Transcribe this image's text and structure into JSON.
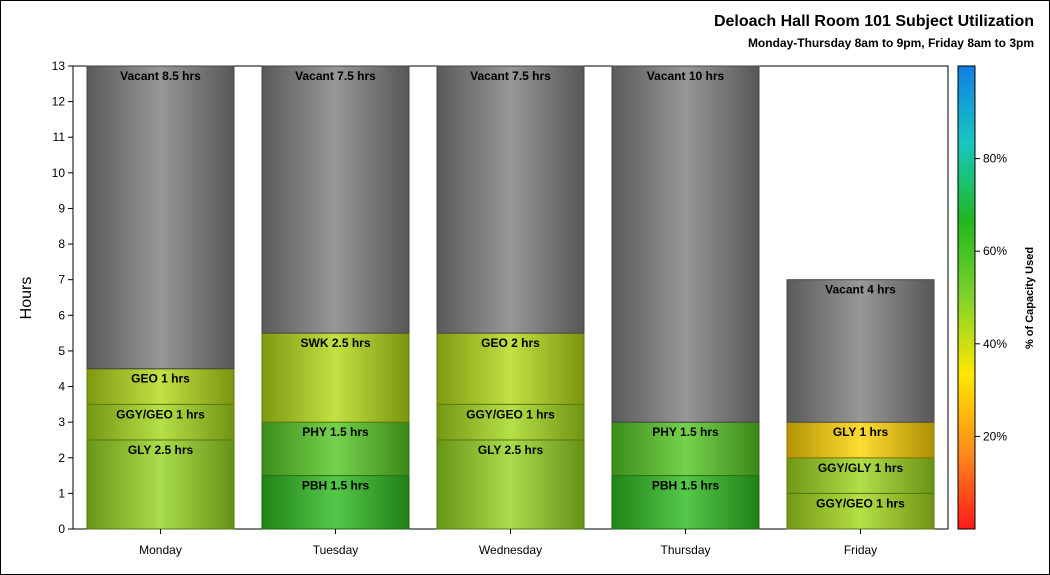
{
  "chart_data": {
    "type": "bar",
    "stacked": true,
    "title": "Deloach Hall Room 101 Subject Utilization",
    "subtitle": "Monday-Thursday 8am to 9pm, Friday 8am to 3pm",
    "ylabel": "Hours",
    "xlabel": "",
    "ylim": [
      0,
      13
    ],
    "yticks": [
      0,
      1,
      2,
      3,
      4,
      5,
      6,
      7,
      8,
      9,
      10,
      11,
      12,
      13
    ],
    "grid": false,
    "categories": [
      "Monday",
      "Tuesday",
      "Wednesday",
      "Thursday",
      "Friday"
    ],
    "bars": [
      {
        "day": "Monday",
        "segments": [
          {
            "label": "GLY 2.5 hrs",
            "hours": 2.5,
            "capacity_pct": 47
          },
          {
            "label": "GGY/GEO 1 hrs",
            "hours": 1,
            "capacity_pct": 45
          },
          {
            "label": "GEO 1 hrs",
            "hours": 1,
            "capacity_pct": 43
          },
          {
            "label": "Vacant 8.5 hrs",
            "hours": 8.5,
            "capacity_pct": null
          }
        ]
      },
      {
        "day": "Tuesday",
        "segments": [
          {
            "label": "PBH 1.5 hrs",
            "hours": 1.5,
            "capacity_pct": 64
          },
          {
            "label": "PHY 1.5 hrs",
            "hours": 1.5,
            "capacity_pct": 57
          },
          {
            "label": "SWK 2.5 hrs",
            "hours": 2.5,
            "capacity_pct": 43
          },
          {
            "label": "Vacant 7.5 hrs",
            "hours": 7.5,
            "capacity_pct": null
          }
        ]
      },
      {
        "day": "Wednesday",
        "segments": [
          {
            "label": "GLY 2.5 hrs",
            "hours": 2.5,
            "capacity_pct": 47
          },
          {
            "label": "GGY/GEO 1 hrs",
            "hours": 1,
            "capacity_pct": 45
          },
          {
            "label": "GEO 2 hrs",
            "hours": 2,
            "capacity_pct": 43
          },
          {
            "label": "Vacant 7.5 hrs",
            "hours": 7.5,
            "capacity_pct": null
          }
        ]
      },
      {
        "day": "Thursday",
        "segments": [
          {
            "label": "PBH 1.5 hrs",
            "hours": 1.5,
            "capacity_pct": 64
          },
          {
            "label": "PHY 1.5 hrs",
            "hours": 1.5,
            "capacity_pct": 57
          },
          {
            "label": "Vacant 10 hrs",
            "hours": 10,
            "capacity_pct": null
          }
        ]
      },
      {
        "day": "Friday",
        "segments": [
          {
            "label": "GGY/GEO 1 hrs",
            "hours": 1,
            "capacity_pct": 45
          },
          {
            "label": "GGY/GLY 1 hrs",
            "hours": 1,
            "capacity_pct": 46
          },
          {
            "label": "GLY 1 hrs",
            "hours": 1,
            "capacity_pct": 30
          },
          {
            "label": "Vacant 4 hrs",
            "hours": 4,
            "capacity_pct": null
          }
        ]
      }
    ],
    "colorbar": {
      "label": "% of Capacity Used",
      "ticks": [
        "20%",
        "40%",
        "60%",
        "80%"
      ],
      "tick_values": [
        20,
        40,
        60,
        80
      ],
      "range": [
        0,
        100
      ],
      "colors": [
        "#ff1a1a",
        "#ff8c1a",
        "#ffe600",
        "#7fd32a",
        "#1fb81f",
        "#18c7c0",
        "#0f7fe6"
      ]
    },
    "vacant_color": "#808080"
  }
}
